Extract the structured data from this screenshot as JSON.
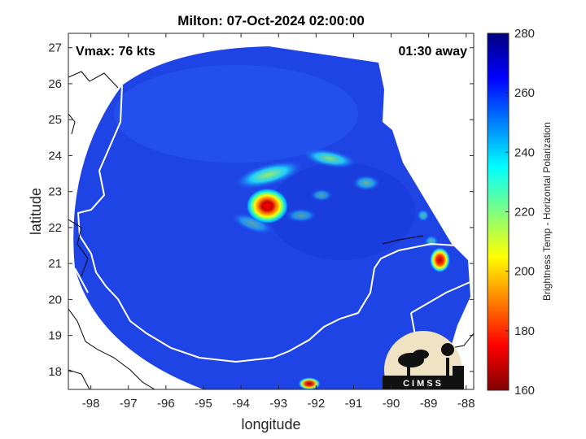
{
  "chart_data": {
    "type": "heatmap",
    "title": "Milton: 07-Oct-2024 02:00:00",
    "xlabel": "longitude",
    "ylabel": "latitude",
    "xlim": [
      -98.6,
      -87.8
    ],
    "ylim": [
      17.5,
      27.4
    ],
    "x_ticks": [
      -98,
      -97,
      -96,
      -95,
      -94,
      -93,
      -92,
      -91,
      -90,
      -89,
      -88
    ],
    "y_ticks": [
      18,
      19,
      20,
      21,
      22,
      23,
      24,
      25,
      26,
      27
    ],
    "annotations": {
      "vmax": "Vmax: 76 kts",
      "time_away": "01:30 away"
    },
    "colorbar": {
      "label": "Brightness Temp - Horizontal Polarization",
      "range": [
        160,
        280
      ],
      "ticks": [
        160,
        180,
        200,
        220,
        240,
        260,
        280
      ],
      "colormap": "jet"
    },
    "storm_center": {
      "lon": -93.3,
      "lat": 22.6,
      "min_temp": 165
    },
    "secondary_feature": {
      "lon": -88.7,
      "lat": 21.1,
      "min_temp": 170
    },
    "swath_background_temp": 258,
    "logo_text": "CIMSS"
  }
}
